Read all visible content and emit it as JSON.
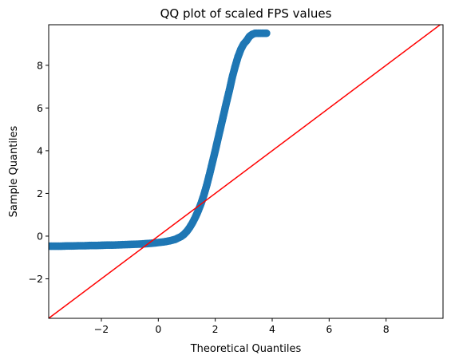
{
  "chart_data": {
    "type": "scatter",
    "title": "QQ plot of scaled FPS values",
    "xlabel": "Theoretical Quantiles",
    "ylabel": "Sample Quantiles",
    "xlim": [
      -3.85,
      10.0
    ],
    "ylim": [
      -3.85,
      9.9
    ],
    "xticks": [
      -2,
      0,
      2,
      4,
      6,
      8
    ],
    "yticks": [
      -2,
      0,
      2,
      4,
      6,
      8
    ],
    "grid": false,
    "legend": "none",
    "series": [
      {
        "kind": "points",
        "color": "#1f77b4",
        "x": [
          -3.8,
          -3.6,
          -3.4,
          -3.2,
          -3.0,
          -2.8,
          -2.6,
          -2.4,
          -2.2,
          -2.0,
          -1.8,
          -1.6,
          -1.4,
          -1.2,
          -1.0,
          -0.8,
          -0.6,
          -0.4,
          -0.2,
          0.0,
          0.2,
          0.4,
          0.6,
          0.8,
          0.9,
          1.0,
          1.1,
          1.2,
          1.3,
          1.4,
          1.5,
          1.6,
          1.7,
          1.8,
          1.9,
          2.0,
          2.1,
          2.2,
          2.3,
          2.4,
          2.5,
          2.6,
          2.7,
          2.8,
          2.9,
          3.0,
          3.1,
          3.2,
          3.3,
          3.4,
          3.5,
          3.6,
          3.7,
          3.8
        ],
        "y": [
          -0.47,
          -0.47,
          -0.47,
          -0.46,
          -0.46,
          -0.45,
          -0.45,
          -0.44,
          -0.44,
          -0.43,
          -0.42,
          -0.42,
          -0.41,
          -0.4,
          -0.39,
          -0.38,
          -0.37,
          -0.35,
          -0.33,
          -0.3,
          -0.27,
          -0.22,
          -0.15,
          -0.02,
          0.08,
          0.22,
          0.4,
          0.62,
          0.88,
          1.18,
          1.52,
          1.92,
          2.38,
          2.9,
          3.45,
          4.0,
          4.58,
          5.15,
          5.72,
          6.3,
          6.85,
          7.45,
          7.95,
          8.4,
          8.75,
          9.0,
          9.15,
          9.35,
          9.45,
          9.5,
          9.5,
          9.5,
          9.5,
          9.5
        ]
      },
      {
        "kind": "line",
        "color": "#ff0000",
        "x": [
          -3.85,
          10.0
        ],
        "y": [
          -3.85,
          10.0
        ]
      }
    ]
  }
}
